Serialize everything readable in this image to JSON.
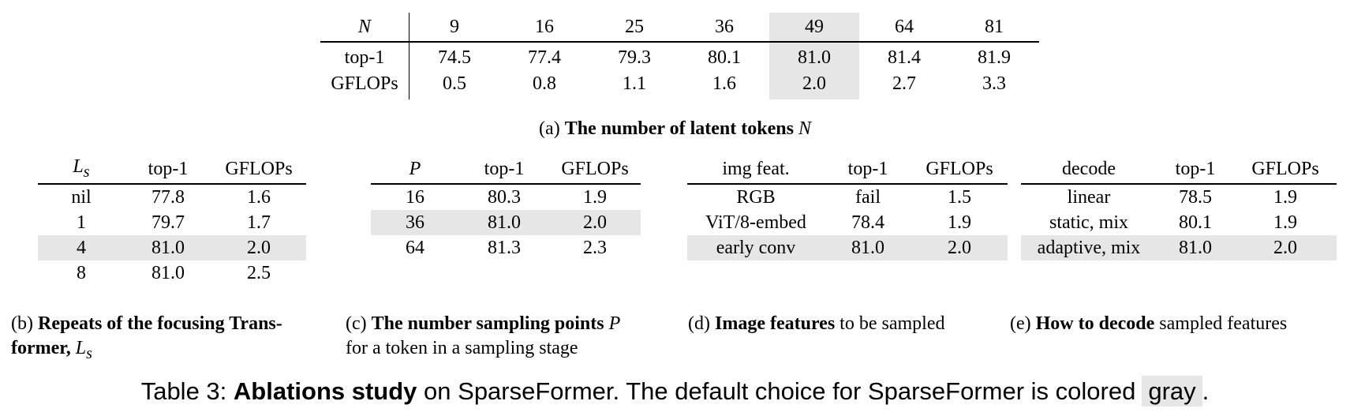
{
  "table_a": {
    "row_headers": [
      "N",
      "top-1",
      "GFLOPs"
    ],
    "columns": [
      "9",
      "16",
      "25",
      "36",
      "49",
      "64",
      "81"
    ],
    "top1": [
      "74.5",
      "77.4",
      "79.3",
      "80.1",
      "81.0",
      "81.4",
      "81.9"
    ],
    "gflops": [
      "0.5",
      "0.8",
      "1.1",
      "1.6",
      "2.0",
      "2.7",
      "3.3"
    ],
    "highlight_column": "49",
    "caption_prefix": "(a)",
    "caption_bold": "The number of latent tokens",
    "caption_var": "N"
  },
  "table_b": {
    "header": [
      "L",
      "top-1",
      "GFLOPs"
    ],
    "header_sub": "s",
    "rows": [
      [
        "nil",
        "77.8",
        "1.6"
      ],
      [
        "1",
        "79.7",
        "1.7"
      ],
      [
        "4",
        "81.0",
        "2.0"
      ],
      [
        "8",
        "81.0",
        "2.5"
      ]
    ],
    "highlight_row": "4",
    "caption_prefix": "(b)",
    "caption_bold_1": "Repeats of the focusing Trans-",
    "caption_bold_2": "former,",
    "caption_var": "L",
    "caption_var_sub": "s"
  },
  "table_c": {
    "header": [
      "P",
      "top-1",
      "GFLOPs"
    ],
    "rows": [
      [
        "16",
        "80.3",
        "1.9"
      ],
      [
        "36",
        "81.0",
        "2.0"
      ],
      [
        "64",
        "81.3",
        "2.3"
      ]
    ],
    "highlight_row": "36",
    "caption_prefix": "(c)",
    "caption_bold": "The number sampling points",
    "caption_var": "P",
    "caption_rest": "for a token in a sampling stage"
  },
  "table_d": {
    "header": [
      "img feat.",
      "top-1",
      "GFLOPs"
    ],
    "rows": [
      [
        "RGB",
        "fail",
        "1.5"
      ],
      [
        "ViT/8-embed",
        "78.4",
        "1.9"
      ],
      [
        "early conv",
        "81.0",
        "2.0"
      ]
    ],
    "highlight_row": "early conv",
    "caption_prefix": "(d)",
    "caption_bold": "Image features",
    "caption_rest": "to be sampled"
  },
  "table_e": {
    "header": [
      "decode",
      "top-1",
      "GFLOPs"
    ],
    "rows": [
      [
        "linear",
        "78.5",
        "1.9"
      ],
      [
        "static, mix",
        "80.1",
        "1.9"
      ],
      [
        "adaptive, mix",
        "81.0",
        "2.0"
      ]
    ],
    "highlight_row": "adaptive, mix",
    "caption_prefix": "(e)",
    "caption_bold": "How to decode",
    "caption_rest": "sampled features"
  },
  "main_caption": {
    "label": "Table 3:",
    "bold": "Ablations study",
    "text": "on SparseFormer. The default choice for SparseFormer is colored",
    "swatch_word": "gray",
    "end": "."
  },
  "colors": {
    "highlight": "#e6e6e6",
    "text": "#000000",
    "background": "#ffffff"
  }
}
